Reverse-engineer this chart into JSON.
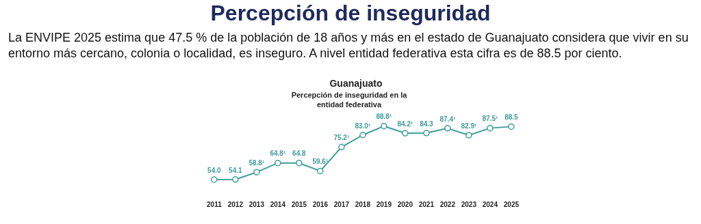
{
  "chart_data": [
    {
      "type": "other",
      "title": "Percepción de inseguridad",
      "subtitle": "La ENVIPE 2025 estima que 47.5 % de la población de 18 años y más en el estado de Guanajuato considera que vivir en su entorno más cercano, colonia o localidad, es inseguro. A nivel entidad federativa esta cifra es de 88.5 por ciento."
    },
    {
      "type": "line",
      "title": "Guanajuato",
      "subtitle": "Percepción de inseguridad en la entidad federativa",
      "categories": [
        "2011",
        "2012",
        "2013",
        "2014",
        "2015",
        "2016",
        "2017",
        "2018",
        "2019",
        "2020",
        "2021",
        "2022",
        "2023",
        "2024",
        "2025"
      ],
      "series": [
        {
          "color": "#3f9c9c",
          "values": [
            54.0,
            54.1,
            58.8,
            64.8,
            64.8,
            59.6,
            75.2,
            83.0,
            88.8,
            84.2,
            84.3,
            87.4,
            82.9,
            87.5,
            88.5
          ],
          "value_labels": [
            "54.0",
            "54.1",
            "58.8¹",
            "64.8¹",
            "64.8",
            "59.6¹",
            "75.2¹",
            "83.0¹",
            "88.8¹",
            "84.2¹",
            "84.3",
            "87.4¹",
            "82.9¹",
            "87.5¹",
            "88.5"
          ]
        }
      ],
      "marker": "circle",
      "tick_labels": "x"
    }
  ]
}
